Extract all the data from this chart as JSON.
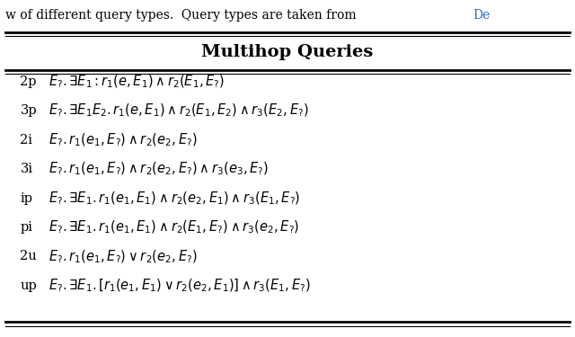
{
  "title": "Multihop Queries",
  "background_color": "#ffffff",
  "caption_text": "w of different query types.  Query types are taken from ",
  "caption_link": "De",
  "caption_link_color": "#3366cc",
  "title_fontsize": 14,
  "row_fontsize": 10.5,
  "caption_fontsize": 10,
  "labels": [
    "2p",
    "3p",
    "2i",
    "3i",
    "ip",
    "pi",
    "2u",
    "up"
  ],
  "formulas": [
    "$E_? . \\exists E_1 : r_1(e, E_1) \\wedge r_2(E_1, E_?)$",
    "$E_? . \\exists E_1 E_2.r_1(e, E_1) \\wedge r_2(E_1, E_2) \\wedge r_3(E_2, E_?)$",
    "$E_? . r_1(e_1, E_?) \\wedge r_2(e_2, E_?)$",
    "$E_? . r_1(e_1, E_?) \\wedge r_2(e_2, E_?) \\wedge r_3(e_3, E_?)$",
    "$E_? . \\exists E_1.r_1(e_1, E_1) \\wedge r_2(e_2, E_1) \\wedge r_3(E_1, E_?)$",
    "$E_? . \\exists E_1.r_1(e_1, E_1) \\wedge r_2(E_1, E_?) \\wedge r_3(e_2, E_?)$",
    "$E_? . r_1(e_1, E_?) \\vee r_2(e_2, E_?)$",
    "$E_? . \\exists E_1.[r_1(e_1, E_1) \\vee r_2(e_2, E_1)] \\wedge r_3(E_1, E_?)$"
  ],
  "line_color": "#000000",
  "thick_lw": 2.0,
  "thin_lw": 0.8
}
